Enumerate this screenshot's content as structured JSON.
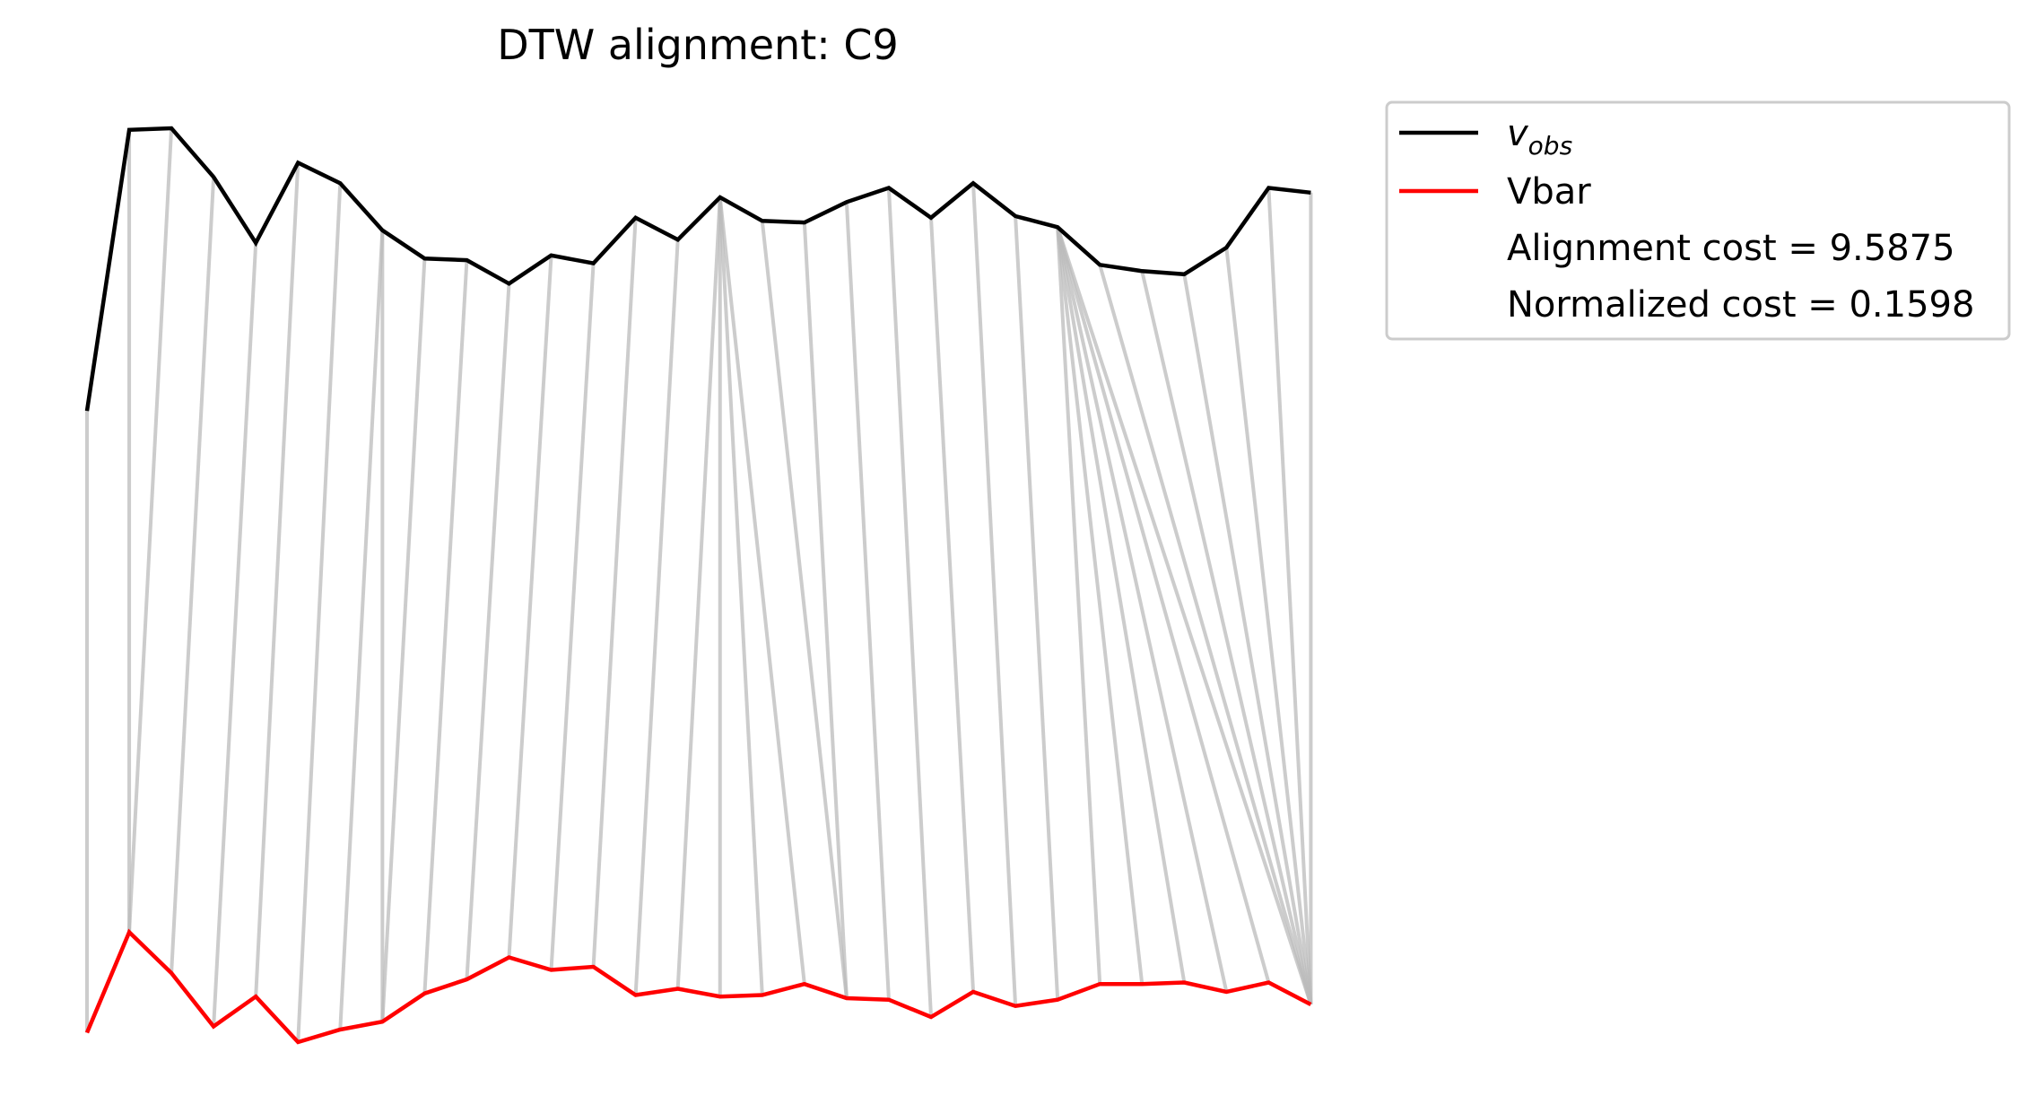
{
  "chart_data": {
    "type": "line",
    "title": "DTW alignment: C9",
    "xlabel": "",
    "ylabel": "",
    "axes_visible": false,
    "grid": false,
    "legend_placement": "outside-upper-right",
    "series": [
      {
        "name": "v_obs",
        "legend_main": "v",
        "legend_sub": "obs",
        "color": "#000000",
        "values": [
          4.71,
          6.5,
          6.51,
          6.2,
          5.78,
          6.29,
          6.16,
          5.86,
          5.68,
          5.67,
          5.52,
          5.7,
          5.65,
          5.94,
          5.8,
          6.07,
          5.92,
          5.91,
          6.04,
          6.13,
          5.94,
          6.16,
          5.95,
          5.88,
          5.64,
          5.6,
          5.58,
          5.75,
          6.13,
          6.1
        ]
      },
      {
        "name": "Vbar",
        "color": "#ff0000",
        "values": [
          0.75,
          1.39,
          1.13,
          0.79,
          0.98,
          0.69,
          0.77,
          0.82,
          1.0,
          1.09,
          1.23,
          1.15,
          1.17,
          0.99,
          1.03,
          0.98,
          0.99,
          1.06,
          0.97,
          0.96,
          0.85,
          1.01,
          0.92,
          0.96,
          1.06,
          1.06,
          1.07,
          1.01,
          1.07,
          0.93
        ]
      }
    ],
    "alignment_color": "#bbbbbb",
    "alignment_path": [
      [
        0,
        0
      ],
      [
        1,
        1
      ],
      [
        2,
        1
      ],
      [
        3,
        2
      ],
      [
        4,
        3
      ],
      [
        5,
        4
      ],
      [
        6,
        5
      ],
      [
        7,
        6
      ],
      [
        7,
        7
      ],
      [
        8,
        7
      ],
      [
        9,
        8
      ],
      [
        10,
        9
      ],
      [
        11,
        10
      ],
      [
        12,
        11
      ],
      [
        13,
        12
      ],
      [
        14,
        13
      ],
      [
        15,
        14
      ],
      [
        15,
        15
      ],
      [
        15,
        16
      ],
      [
        15,
        17
      ],
      [
        16,
        18
      ],
      [
        17,
        18
      ],
      [
        18,
        19
      ],
      [
        19,
        20
      ],
      [
        20,
        21
      ],
      [
        21,
        22
      ],
      [
        22,
        23
      ],
      [
        23,
        24
      ],
      [
        23,
        25
      ],
      [
        23,
        26
      ],
      [
        23,
        27
      ],
      [
        23,
        28
      ],
      [
        23,
        29
      ],
      [
        24,
        29
      ],
      [
        25,
        29
      ],
      [
        26,
        29
      ],
      [
        27,
        29
      ],
      [
        28,
        29
      ],
      [
        29,
        29
      ]
    ]
  },
  "legend": {
    "vobs_main": "v",
    "vobs_sub": "obs",
    "vbar_label": "Vbar",
    "alignment_cost": "Alignment cost = 9.5875",
    "normalized_cost": "Normalized cost = 0.1598"
  }
}
